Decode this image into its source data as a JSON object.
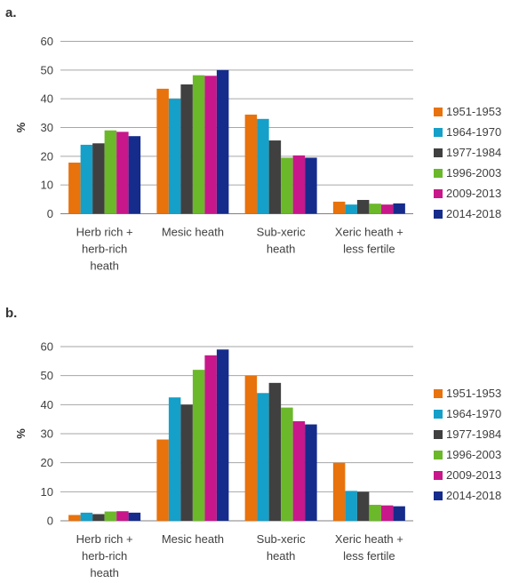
{
  "colors": {
    "series": [
      "#E8720C",
      "#14A0C8",
      "#404040",
      "#6BB82A",
      "#C8178A",
      "#152C8C"
    ],
    "grid": "#a6a6a6",
    "axis_text": "#404040"
  },
  "chart_data": [
    {
      "type": "bar",
      "panel_label": "a.",
      "ylabel": "%",
      "ylim": [
        0,
        60
      ],
      "yticks": [
        0,
        10,
        20,
        30,
        40,
        50,
        60
      ],
      "grid": true,
      "legend_position": "right",
      "categories": [
        [
          "Herb rich +",
          "herb-rich",
          "heath"
        ],
        [
          "Mesic heath"
        ],
        [
          "Sub-xeric",
          "heath"
        ],
        [
          "Xeric heath +",
          "less fertile"
        ]
      ],
      "series": [
        {
          "name": "1951-1953",
          "values": [
            17.8,
            43.5,
            34.5,
            4.2
          ]
        },
        {
          "name": "1964-1970",
          "values": [
            24.0,
            40.0,
            33.0,
            3.2
          ]
        },
        {
          "name": "1977-1984",
          "values": [
            24.5,
            45.0,
            25.5,
            4.8
          ]
        },
        {
          "name": "1996-2003",
          "values": [
            29.0,
            48.2,
            19.5,
            3.5
          ]
        },
        {
          "name": "2009-2013",
          "values": [
            28.5,
            48.0,
            20.3,
            3.2
          ]
        },
        {
          "name": "2014-2018",
          "values": [
            27.0,
            50.0,
            19.5,
            3.6
          ]
        }
      ]
    },
    {
      "type": "bar",
      "panel_label": "b.",
      "ylabel": "%",
      "ylim": [
        0,
        60
      ],
      "yticks": [
        0,
        10,
        20,
        30,
        40,
        50,
        60
      ],
      "grid": true,
      "legend_position": "right",
      "categories": [
        [
          "Herb rich +",
          "herb-rich",
          "heath"
        ],
        [
          "Mesic heath"
        ],
        [
          "Sub-xeric",
          "heath"
        ],
        [
          "Xeric heath +",
          "less fertile"
        ]
      ],
      "series": [
        {
          "name": "1951-1953",
          "values": [
            2.0,
            28.0,
            50.0,
            20.0
          ]
        },
        {
          "name": "1964-1970",
          "values": [
            2.8,
            42.5,
            44.0,
            10.3
          ]
        },
        {
          "name": "1977-1984",
          "values": [
            2.3,
            40.0,
            47.5,
            10.0
          ]
        },
        {
          "name": "1996-2003",
          "values": [
            3.2,
            52.0,
            39.0,
            5.5
          ]
        },
        {
          "name": "2009-2013",
          "values": [
            3.3,
            57.0,
            34.3,
            5.3
          ]
        },
        {
          "name": "2014-2018",
          "values": [
            2.8,
            59.0,
            33.2,
            5.0
          ]
        }
      ]
    }
  ]
}
